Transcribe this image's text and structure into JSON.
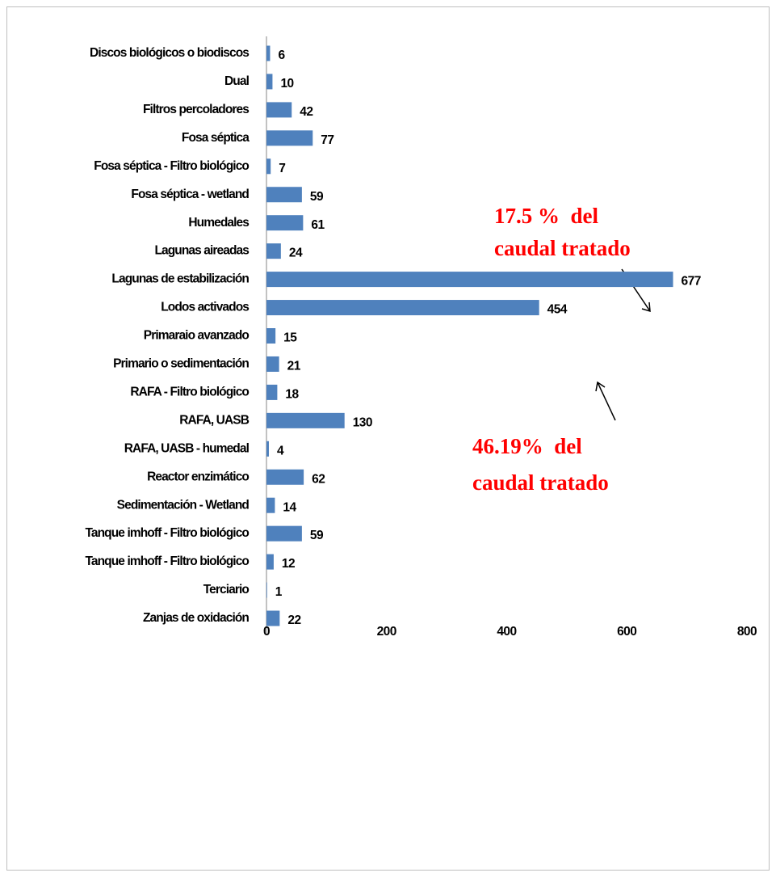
{
  "chart_data": {
    "type": "barh",
    "categories": [
      "Discos biológicos o biodiscos",
      "Dual",
      "Filtros percoladores",
      "Fosa séptica",
      "Fosa séptica - Filtro biológico",
      "Fosa séptica - wetland",
      "Humedales",
      "Lagunas aireadas",
      "Lagunas de estabilización",
      "Lodos activados",
      "Primaraio avanzado",
      "Primario o sedimentación",
      "RAFA - Filtro biológico",
      "RAFA, UASB ",
      "RAFA, UASB - humedal",
      "Reactor enzimático",
      "Sedimentación - Wetland",
      "Tanque imhoff - Filtro biológico",
      "Tanque imhoff - Filtro biológico",
      "Terciario",
      "Zanjas de oxidación"
    ],
    "values": [
      6,
      10,
      42,
      77,
      7,
      59,
      61,
      24,
      677,
      454,
      15,
      21,
      18,
      130,
      4,
      62,
      14,
      59,
      12,
      1,
      22
    ],
    "color": "#4f81bd",
    "xlim": [
      0,
      800
    ],
    "xticks": [
      0,
      200,
      400,
      600,
      800
    ],
    "annotations": [
      [
        "17.5 %  del",
        "caudal tratado"
      ],
      [
        "46.19%  del",
        "caudal tratado"
      ]
    ]
  }
}
